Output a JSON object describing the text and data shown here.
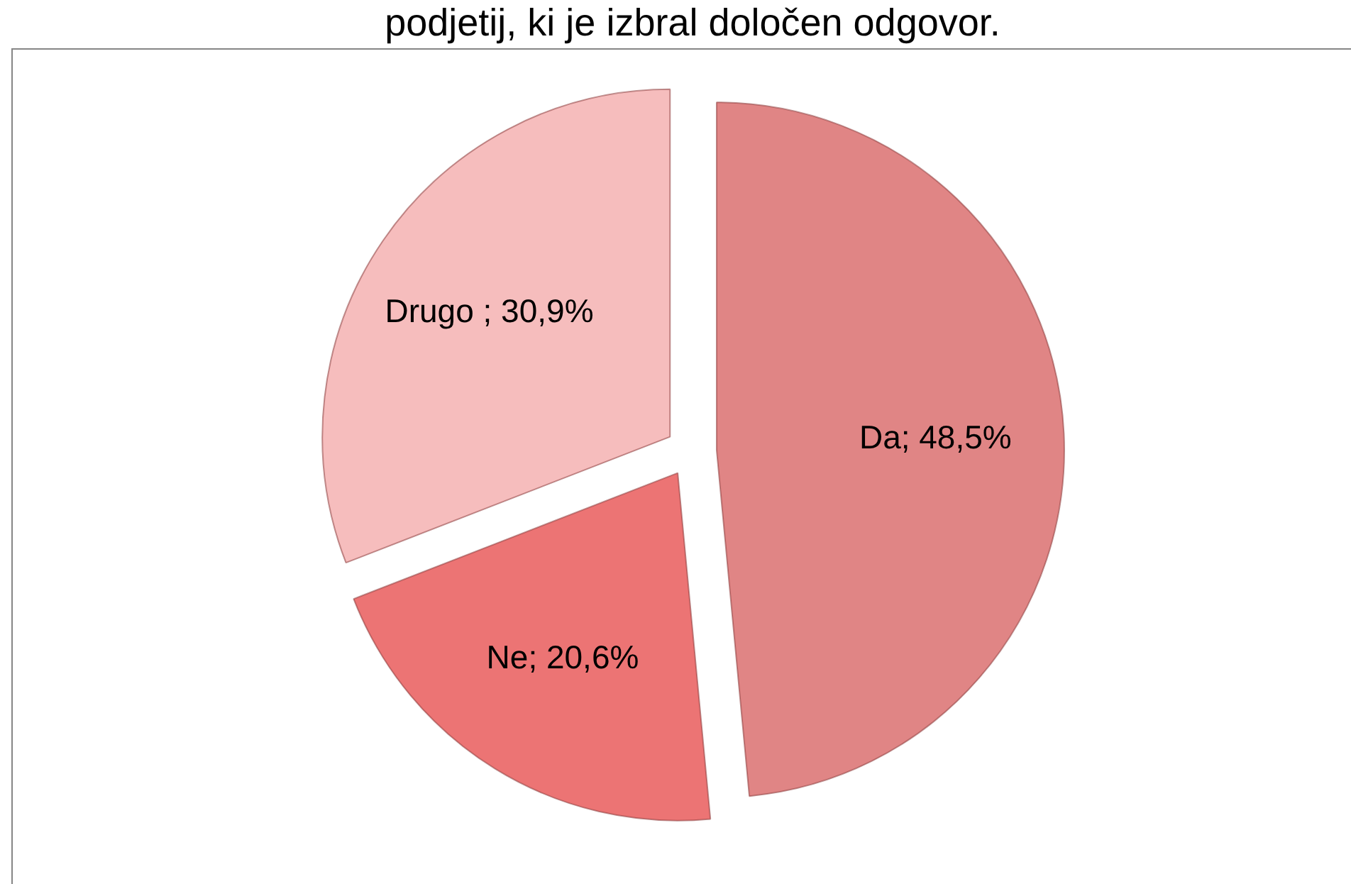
{
  "chart_data": {
    "type": "pie",
    "title": "podjetij, ki je izbral določen odgovor.",
    "categories": [
      "Da",
      "Ne",
      "Drugo"
    ],
    "values": [
      48.5,
      20.6,
      30.9
    ],
    "colors": [
      "#e08585",
      "#ec7474",
      "#f6bdbd"
    ],
    "value_labels": [
      "; 48,5%",
      "; 20,6%",
      " ; 30,9%"
    ]
  }
}
